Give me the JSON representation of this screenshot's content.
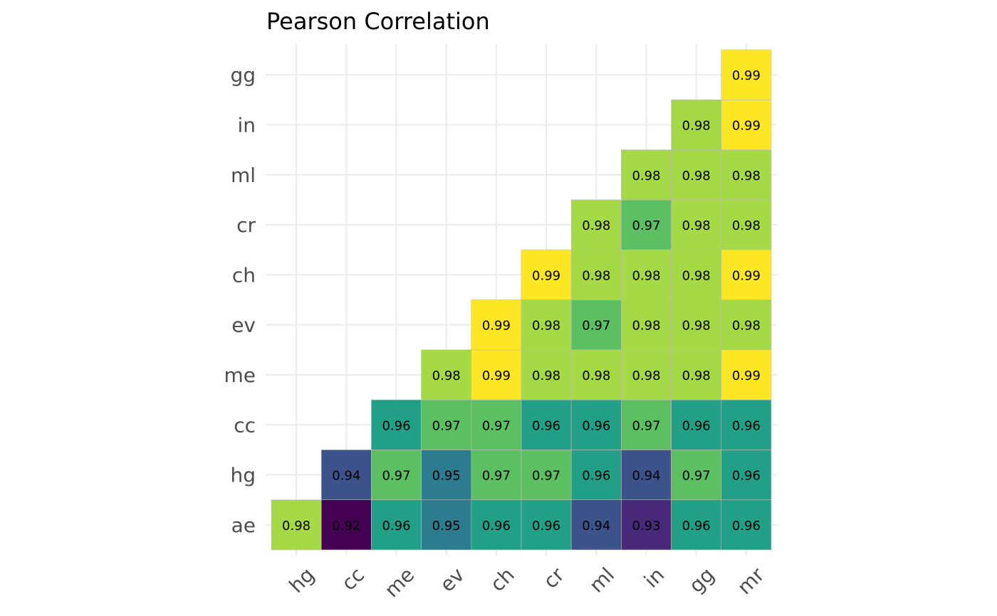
{
  "chart_data": {
    "type": "heatmap",
    "title": "Pearson Correlation",
    "x_categories": [
      "hg",
      "cc",
      "me",
      "ev",
      "ch",
      "cr",
      "ml",
      "in",
      "gg",
      "mr"
    ],
    "y_categories": [
      "ae",
      "hg",
      "cc",
      "me",
      "ev",
      "ch",
      "cr",
      "ml",
      "in",
      "gg"
    ],
    "values": [
      [
        0.98,
        0.92,
        0.96,
        0.95,
        0.96,
        0.96,
        0.94,
        0.93,
        0.96,
        0.96
      ],
      [
        null,
        0.94,
        0.97,
        0.95,
        0.97,
        0.97,
        0.96,
        0.94,
        0.97,
        0.96
      ],
      [
        null,
        null,
        0.96,
        0.97,
        0.97,
        0.96,
        0.96,
        0.97,
        0.96,
        0.96
      ],
      [
        null,
        null,
        null,
        0.98,
        0.99,
        0.98,
        0.98,
        0.98,
        0.98,
        0.99
      ],
      [
        null,
        null,
        null,
        null,
        0.99,
        0.98,
        0.97,
        0.98,
        0.98,
        0.98
      ],
      [
        null,
        null,
        null,
        null,
        null,
        0.99,
        0.98,
        0.98,
        0.98,
        0.99
      ],
      [
        null,
        null,
        null,
        null,
        null,
        null,
        0.98,
        0.97,
        0.98,
        0.98
      ],
      [
        null,
        null,
        null,
        null,
        null,
        null,
        null,
        0.98,
        0.98,
        0.98
      ],
      [
        null,
        null,
        null,
        null,
        null,
        null,
        null,
        null,
        0.98,
        0.99
      ],
      [
        null,
        null,
        null,
        null,
        null,
        null,
        null,
        null,
        null,
        0.99
      ]
    ],
    "color_scale": {
      "0.92": "#440154",
      "0.93": "#482878",
      "0.94": "#3b528b",
      "0.95": "#2c7b8e",
      "0.96": "#21a087",
      "0.97": "#5cc063",
      "0.98": "#a5d946",
      "0.99": "#fde725"
    },
    "grid": true,
    "legend": "none"
  }
}
